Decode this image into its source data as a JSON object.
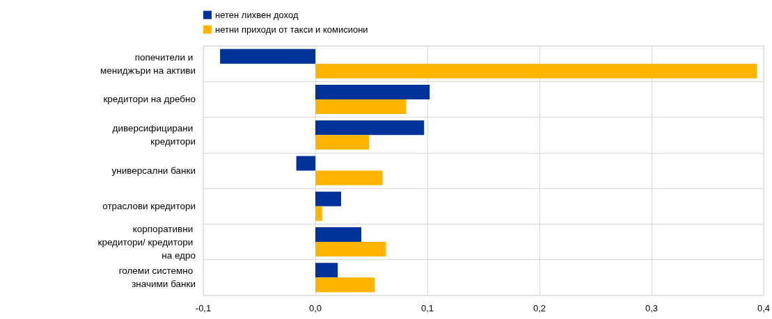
{
  "chart_data": {
    "type": "bar",
    "orientation": "horizontal",
    "categories": [
      "попечители и мениджъри на активи",
      "кредитори на дребно",
      "диверсифицирани кредитори",
      "универсални банки",
      "отраслови кредитори",
      "корпоративни кредитори/ кредитори на едро",
      "големи системно значими банки"
    ],
    "series": [
      {
        "name": "нетен лихвен доход",
        "color": "#003299",
        "values": [
          -0.085,
          0.102,
          0.097,
          -0.017,
          0.023,
          0.041,
          0.02
        ]
      },
      {
        "name": "нетни приходи от такси и комисиони",
        "color": "#ffb400",
        "values": [
          0.394,
          0.081,
          0.048,
          0.06,
          0.006,
          0.063,
          0.053
        ]
      }
    ],
    "xlim": [
      -0.1,
      0.4
    ],
    "xticks": [
      {
        "value": -0.1,
        "label": "-0,1"
      },
      {
        "value": 0,
        "label": "0,0"
      },
      {
        "value": 0.1,
        "label": "0,1"
      },
      {
        "value": 0.2,
        "label": "0,2"
      },
      {
        "value": 0.3,
        "label": "0,3"
      },
      {
        "value": 0.4,
        "label": "0,4"
      }
    ],
    "grid": true,
    "legend": "top left"
  }
}
